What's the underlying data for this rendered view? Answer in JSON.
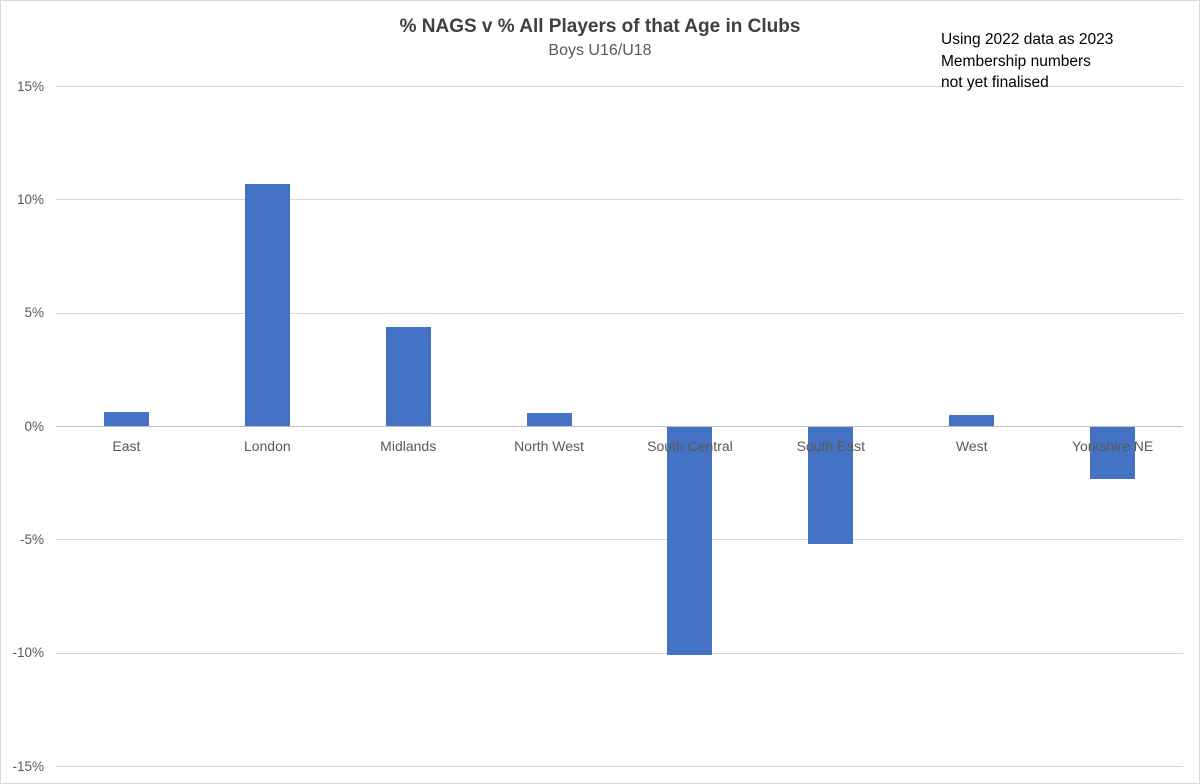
{
  "chart_data": {
    "type": "bar",
    "title": "% NAGS v % All Players of that Age in Clubs",
    "subtitle": "Boys U16/U18",
    "categories": [
      "East",
      "London",
      "Midlands",
      "North West",
      "South Central",
      "South East",
      "West",
      "Yorkshire NE"
    ],
    "values": [
      0.65,
      10.7,
      4.4,
      0.6,
      -10.1,
      -5.2,
      0.5,
      -2.3
    ],
    "unit": "%",
    "ylim": [
      -15,
      15
    ],
    "ytick_interval": 5,
    "ytick_labels": [
      "-15%",
      "-10%",
      "-5%",
      "0%",
      "5%",
      "10%",
      "15%"
    ],
    "grid": "horizontal",
    "legend": "none",
    "bar_color": "#4472C4",
    "gridline_color": "#D9D9D9",
    "axis_line_color": "#BFBFBF",
    "text_color": "#595959",
    "title_color": "#404040"
  },
  "annotation": {
    "lines": [
      "Using 2022 data as 2023",
      "Membership numbers",
      "not yet finalised"
    ]
  }
}
